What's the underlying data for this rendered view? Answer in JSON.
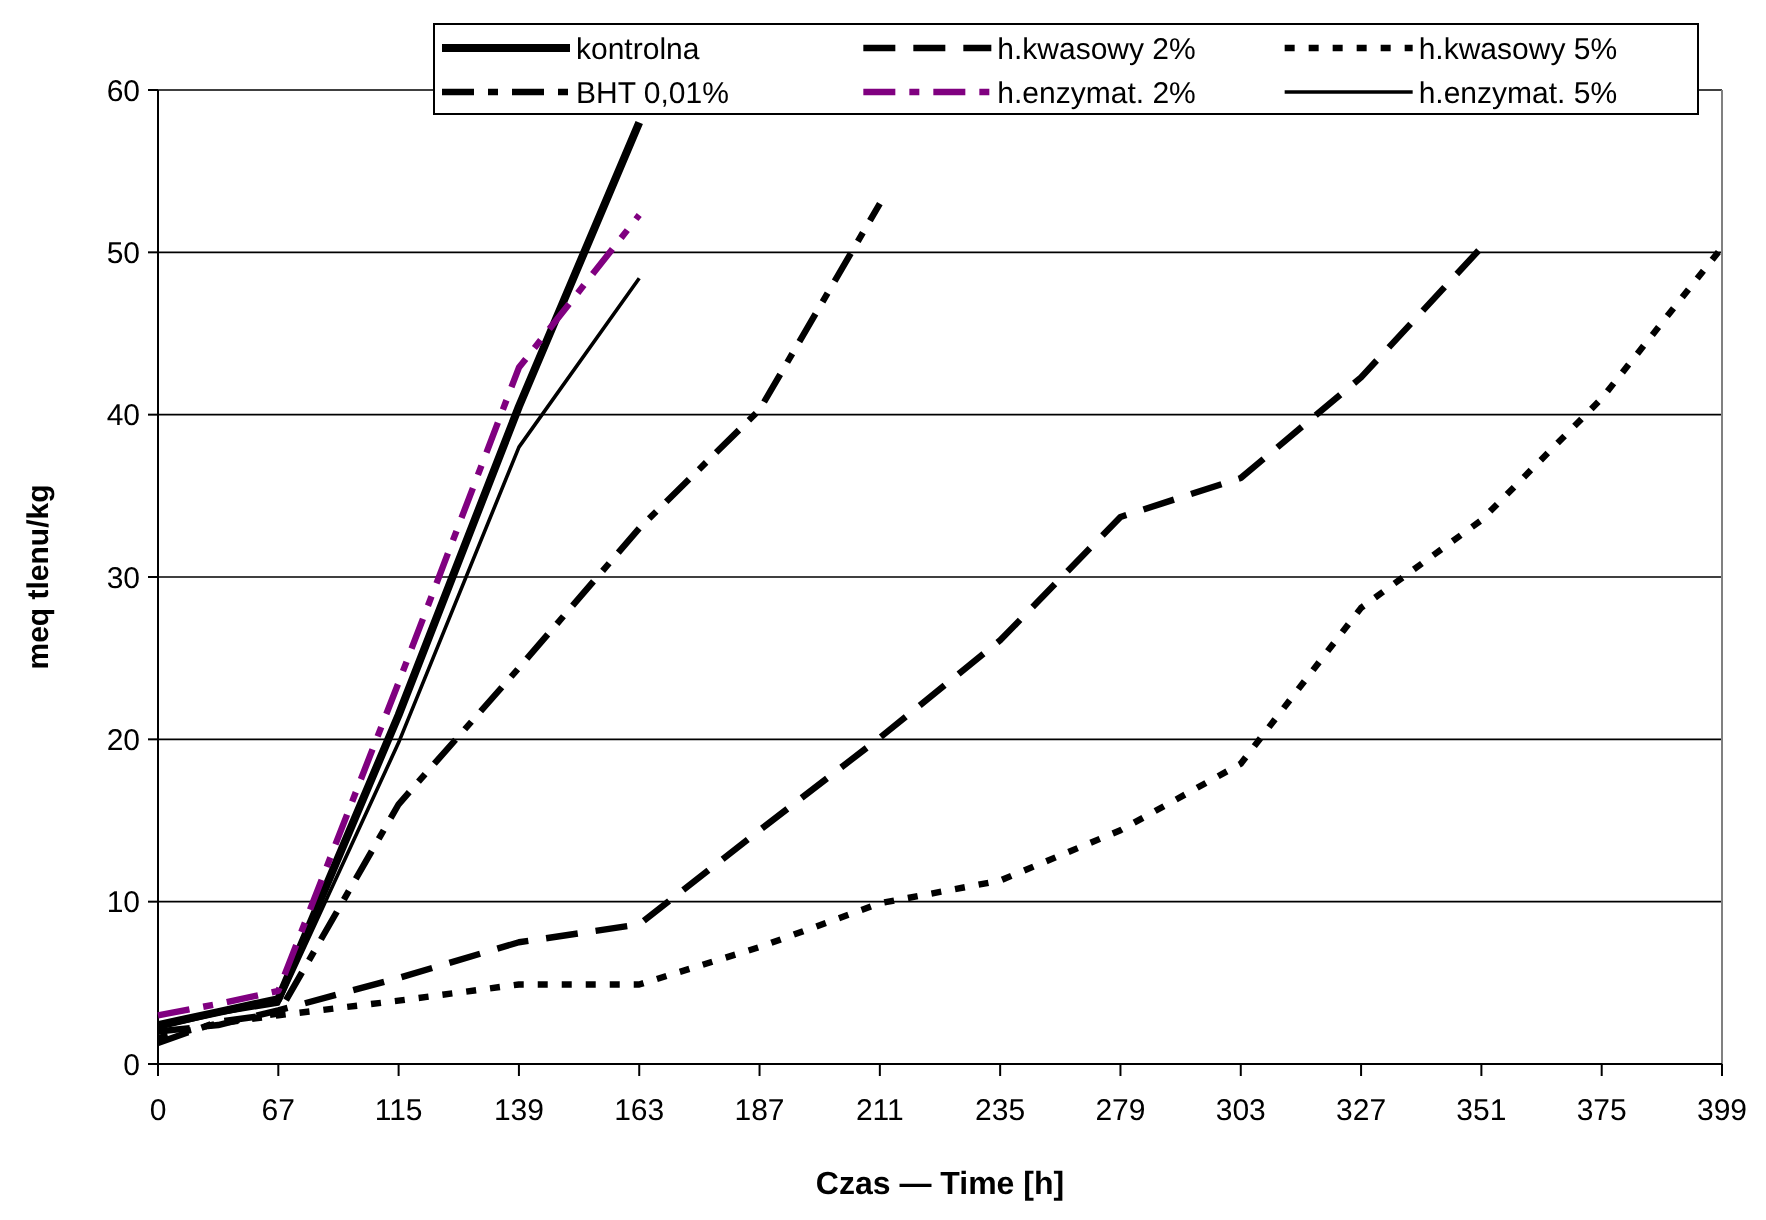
{
  "chart_data": {
    "type": "line",
    "xlabel": "Czas — Time [h]",
    "ylabel": "meq tlenu/kg",
    "categories": [
      "0",
      null,
      "67",
      null,
      "115",
      null,
      "139",
      null,
      "163",
      null,
      "187",
      null,
      "211",
      null,
      "235",
      null,
      "279",
      null,
      "303",
      null,
      "327",
      null,
      "351",
      null,
      "375",
      null,
      "399"
    ],
    "ylim": [
      0,
      60
    ],
    "yticks": [
      0,
      10,
      20,
      30,
      40,
      50,
      60
    ],
    "grid": "y",
    "legend": "top right",
    "series": [
      {
        "name": "kontrolna",
        "color": "#000000",
        "line_style": "solid",
        "values": [
          2.4,
          3.2,
          4.0,
          null,
          21.5,
          null,
          40.5,
          null,
          58,
          null,
          null,
          null,
          null,
          null,
          null,
          null,
          null,
          null,
          null,
          null,
          null,
          null,
          null,
          null,
          null,
          null,
          null
        ]
      },
      {
        "name": "h.kwasowy 2%",
        "color": "#000000",
        "line_style": "dashed",
        "values": [
          2.0,
          2.4,
          3.3,
          null,
          5.3,
          null,
          7.5,
          null,
          8.6,
          null,
          14.4,
          null,
          20.1,
          null,
          26.1,
          null,
          33.7,
          null,
          36.1,
          null,
          42.3,
          null,
          50.3,
          null,
          null,
          null,
          null
        ]
      },
      {
        "name": "h.kwasowy 5%",
        "color": "#000000",
        "line_style": "dotted",
        "values": [
          1.6,
          2.5,
          3.0,
          null,
          3.9,
          null,
          4.9,
          null,
          4.9,
          null,
          7.2,
          null,
          9.9,
          null,
          11.3,
          null,
          14.4,
          null,
          18.5,
          null,
          28.1,
          null,
          33.5,
          null,
          41.0,
          null,
          50.3
        ]
      },
      {
        "name": "BHT 0,01%",
        "color": "#000000",
        "line_style": "dashdot",
        "values": [
          1.3,
          2.6,
          3.1,
          null,
          16,
          null,
          24.4,
          null,
          33,
          null,
          40.3,
          null,
          53,
          null,
          null,
          null,
          null,
          null,
          null,
          null,
          null,
          null,
          null,
          null,
          null,
          null,
          null
        ]
      },
      {
        "name": "h.enzymat. 2%",
        "color": "#800080",
        "line_style": "dashdot",
        "values": [
          3.0,
          3.7,
          4.5,
          null,
          23.5,
          null,
          42.9,
          null,
          52.3,
          null,
          null,
          null,
          null,
          null,
          null,
          null,
          null,
          null,
          null,
          null,
          null,
          null,
          null,
          null,
          null,
          null,
          null
        ]
      },
      {
        "name": "h.enzymat. 5%",
        "color": "#000000",
        "line_style": "solid",
        "values": [
          2.2,
          3.1,
          3.7,
          null,
          19.8,
          null,
          38,
          null,
          48.4,
          null,
          null,
          null,
          null,
          null,
          null,
          null,
          null,
          null,
          null,
          null,
          null,
          null,
          null,
          null,
          null,
          null,
          null
        ]
      }
    ]
  }
}
